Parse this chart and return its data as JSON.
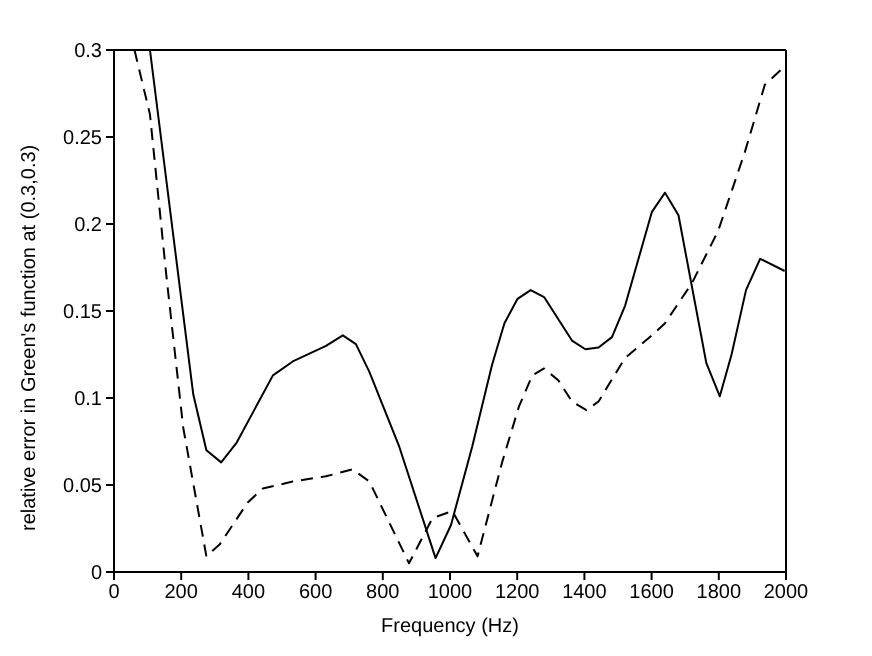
{
  "chart_data": {
    "type": "line",
    "xlabel": "Frequency (Hz)",
    "ylabel": "relative error in Green's function at (0.3,0.3)",
    "xlim": [
      0,
      2000
    ],
    "xticks": [
      0,
      200,
      400,
      600,
      800,
      1000,
      1200,
      1400,
      1600,
      1800,
      2000
    ],
    "ylim": [
      0,
      0.3
    ],
    "yticks": [
      0,
      0.05,
      0.1,
      0.15,
      0.2,
      0.25,
      0.3
    ],
    "grid": false,
    "legend": false,
    "marker": "none",
    "series": [
      {
        "color": "#000000",
        "line_style": "solid",
        "x": [
          107,
          236,
          275,
          319,
          364,
          473,
          532,
          631,
          681,
          720,
          760,
          849,
          957,
          1003,
          1066,
          1125,
          1162,
          1201,
          1240,
          1280,
          1363,
          1403,
          1442,
          1482,
          1521,
          1601,
          1640,
          1680,
          1763,
          1803,
          1838,
          1881,
          1923,
          1996
        ],
        "values": [
          0.3,
          0.102,
          0.07,
          0.063,
          0.074,
          0.113,
          0.121,
          0.13,
          0.136,
          0.131,
          0.115,
          0.072,
          0.008,
          0.027,
          0.072,
          0.119,
          0.143,
          0.157,
          0.162,
          0.158,
          0.133,
          0.128,
          0.129,
          0.135,
          0.153,
          0.207,
          0.218,
          0.205,
          0.12,
          0.101,
          0.125,
          0.162,
          0.18,
          0.173
        ]
      },
      {
        "color": "#000000",
        "line_style": "dashed",
        "x": [
          61,
          107,
          156,
          206,
          275,
          315,
          398,
          443,
          532,
          631,
          710,
          760,
          878,
          948,
          1007,
          1082,
          1155,
          1205,
          1245,
          1280,
          1323,
          1363,
          1406,
          1442,
          1521,
          1601,
          1640,
          1720,
          1798,
          1877,
          1937,
          1993
        ],
        "values": [
          0.3,
          0.263,
          0.17,
          0.083,
          0.009,
          0.016,
          0.04,
          0.048,
          0.052,
          0.055,
          0.059,
          0.052,
          0.005,
          0.031,
          0.035,
          0.009,
          0.063,
          0.095,
          0.113,
          0.117,
          0.11,
          0.098,
          0.093,
          0.098,
          0.123,
          0.136,
          0.143,
          0.166,
          0.196,
          0.241,
          0.28,
          0.29
        ]
      }
    ]
  }
}
